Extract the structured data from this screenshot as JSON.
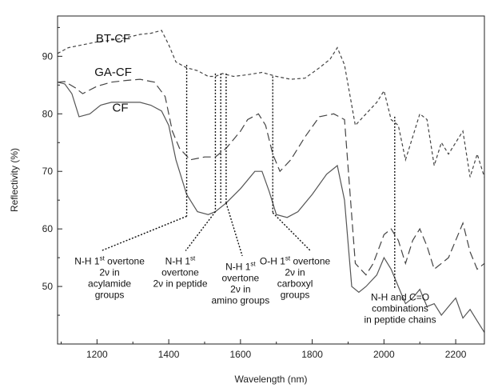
{
  "chart_data": {
    "type": "line",
    "title": "",
    "xlabel": "Wavelength (nm)",
    "ylabel": "Reflectivity (%)",
    "xlim": [
      1090,
      2280
    ],
    "ylim": [
      40,
      97
    ],
    "xticks": [
      1200,
      1400,
      1600,
      1800,
      2000,
      2200
    ],
    "yticks": [
      50,
      60,
      70,
      80,
      90
    ],
    "grid": false,
    "series": [
      {
        "name": "BT-CF",
        "style": "short-dash",
        "color": "#444444",
        "x": [
          1090,
          1120,
          1160,
          1200,
          1240,
          1280,
          1320,
          1350,
          1380,
          1400,
          1420,
          1450,
          1480,
          1510,
          1530,
          1550,
          1580,
          1620,
          1660,
          1700,
          1740,
          1780,
          1820,
          1850,
          1870,
          1890,
          1920,
          1950,
          1980,
          2000,
          2020,
          2040,
          2060,
          2080,
          2100,
          2120,
          2140,
          2160,
          2180,
          2200,
          2220,
          2240,
          2260,
          2280
        ],
        "y": [
          90.5,
          91.5,
          92,
          92.5,
          92.8,
          93.2,
          93.8,
          94,
          94.5,
          92,
          89,
          88,
          87.5,
          86.5,
          86.5,
          87,
          86.5,
          86.8,
          87.2,
          86.5,
          86,
          86.2,
          88,
          89.5,
          91.5,
          88.5,
          78,
          80,
          82,
          84,
          79,
          78,
          72,
          76,
          80,
          79,
          71,
          75,
          73,
          75,
          77,
          69,
          73,
          69
        ]
      },
      {
        "name": "GA-CF",
        "style": "long-dash",
        "color": "#444444",
        "x": [
          1090,
          1110,
          1140,
          1160,
          1200,
          1240,
          1280,
          1320,
          1360,
          1390,
          1410,
          1430,
          1460,
          1500,
          1530,
          1560,
          1600,
          1620,
          1650,
          1670,
          1690,
          1710,
          1740,
          1780,
          1820,
          1860,
          1890,
          1920,
          1950,
          1970,
          2000,
          2020,
          2040,
          2060,
          2080,
          2100,
          2120,
          2140,
          2160,
          2180,
          2200,
          2220,
          2240,
          2260,
          2280
        ],
        "y": [
          85.5,
          85.6,
          84.5,
          83.5,
          84.8,
          85.5,
          85.8,
          86,
          85.5,
          83,
          77,
          74,
          72,
          72.5,
          72.5,
          74,
          77,
          79,
          80,
          78,
          73,
          70,
          72,
          76,
          79.5,
          80,
          79,
          54,
          52,
          54,
          59,
          60,
          58,
          54,
          58,
          60,
          57,
          53,
          54,
          55,
          58,
          61,
          56,
          53,
          54
        ]
      },
      {
        "name": "CF",
        "style": "solid",
        "color": "#555555",
        "x": [
          1090,
          1110,
          1130,
          1150,
          1180,
          1210,
          1240,
          1280,
          1320,
          1350,
          1380,
          1400,
          1420,
          1450,
          1480,
          1510,
          1530,
          1560,
          1600,
          1640,
          1660,
          1680,
          1700,
          1730,
          1760,
          1800,
          1840,
          1870,
          1890,
          1910,
          1930,
          1950,
          1980,
          2000,
          2020,
          2040,
          2060,
          2080,
          2100,
          2120,
          2140,
          2160,
          2180,
          2200,
          2220,
          2240,
          2260,
          2280
        ],
        "y": [
          85.5,
          85.2,
          83.5,
          79.5,
          80,
          81.5,
          82,
          82,
          82,
          81.5,
          80.5,
          78,
          72,
          66,
          63,
          62.5,
          63,
          64.5,
          67,
          70,
          70,
          66.5,
          62.5,
          62,
          63,
          66,
          69.5,
          71,
          65,
          50,
          49,
          50,
          52,
          55,
          53,
          50,
          47,
          48,
          49.5,
          46.5,
          47,
          45,
          46.5,
          48,
          44.5,
          46,
          44,
          42
        ]
      }
    ],
    "series_labels": [
      {
        "text": "BT-CF",
        "x": 1245,
        "y": 92.4
      },
      {
        "text": "GA-CF",
        "x": 1245,
        "y": 86.6
      },
      {
        "text": "CF",
        "x": 1265,
        "y": 80.4
      }
    ],
    "annotations": [
      {
        "lines": [
          "N-H 1st overtone",
          "2ν in",
          "acylamide",
          "groups"
        ],
        "sup_line": 0,
        "text_x": 1235,
        "text_y": 55.8,
        "anchor_x": 1450,
        "anchor_y": 62.2,
        "vline_top": 88.5,
        "vline_x": 1450,
        "leader_to": [
          1212,
          56.2
        ]
      },
      {
        "lines": [
          "N-H 1st",
          "overtone",
          "2ν in peptide"
        ],
        "sup_line": 0,
        "text_x": 1432,
        "text_y": 55.8,
        "anchor_x": 1530,
        "anchor_y": 63,
        "vline_top": 87,
        "vline_x": 1530,
        "leader_to": [
          1447,
          56.2
        ]
      },
      {
        "lines": [
          "N-H 1st",
          "overtone",
          "2ν in",
          "amino groups"
        ],
        "sup_line": 0,
        "text_x": 1600,
        "text_y": 54.8,
        "anchor_x": 1560,
        "anchor_y": 64.5,
        "vline_top": 87,
        "vline_x": 1560,
        "leader_to": [
          1605,
          55.3
        ],
        "extra_vline_x": 1545
      },
      {
        "lines": [
          "O-H 1st overtone",
          "2ν in",
          "carboxyl",
          "groups"
        ],
        "sup_line": 0,
        "text_x": 1752,
        "text_y": 55.8,
        "anchor_x": 1690,
        "anchor_y": 62.8,
        "vline_top": 86.5,
        "vline_x": 1690,
        "leader_to": [
          1795,
          56.2
        ]
      },
      {
        "lines": [
          "N-H and C=O",
          "combinations",
          "in peptide chains"
        ],
        "sup_line": -1,
        "text_x": 2045,
        "text_y": 49.5,
        "anchor_x": 2030,
        "anchor_y": 49.5,
        "vline_top": 79.5,
        "vline_x": 2030,
        "leader_to": null
      }
    ]
  }
}
